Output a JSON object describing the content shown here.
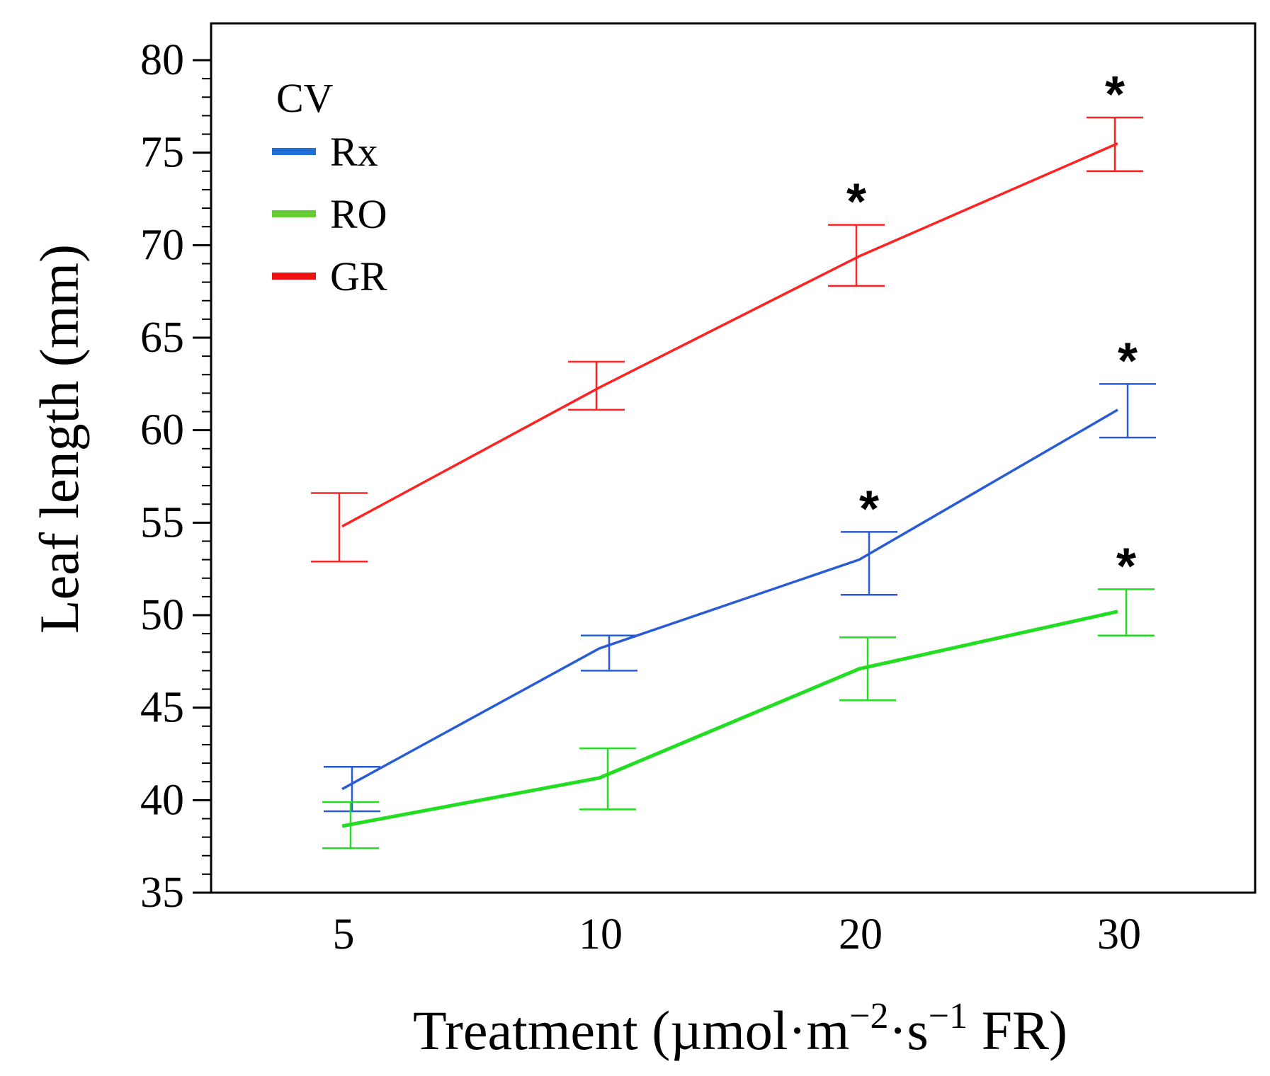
{
  "chart_data": {
    "type": "line",
    "title": "",
    "xlabel": "Treatment (µmol·m",
    "xlabel_sup1": "−2",
    "xlabel_mid": "·s",
    "xlabel_sup2": "−1",
    "xlabel_end": " FR)",
    "ylabel": "Leaf length (mm)",
    "categories": [
      "5",
      "10",
      "20",
      "30"
    ],
    "ylim": [
      35,
      81
    ],
    "yticks": [
      35,
      40,
      45,
      50,
      55,
      60,
      65,
      70,
      75,
      80
    ],
    "ytick_labels": [
      "35",
      "40",
      "45",
      "50",
      "55",
      "60",
      "65",
      "70",
      "75",
      "80"
    ],
    "grid": false,
    "legend": {
      "title": "CV",
      "placement": "top-left"
    },
    "series": [
      {
        "name": "Rx",
        "color": "#2a5bd7",
        "legend_color": "#1f6fd6",
        "values": [
          40.6,
          48.2,
          53.0,
          61.1
        ],
        "error_low": [
          39.4,
          47.0,
          51.1,
          59.6
        ],
        "error_high": [
          41.8,
          48.9,
          54.5,
          62.5
        ],
        "significant": [
          false,
          false,
          true,
          true
        ]
      },
      {
        "name": "RO",
        "color": "#22dd22",
        "legend_color": "#66cc33",
        "values": [
          38.6,
          41.2,
          47.1,
          50.2
        ],
        "error_low": [
          37.4,
          39.5,
          45.4,
          48.9
        ],
        "error_high": [
          39.9,
          42.8,
          48.8,
          51.4
        ],
        "significant": [
          false,
          false,
          false,
          true
        ]
      },
      {
        "name": "GR",
        "color": "#ff2222",
        "legend_color": "#ee1111",
        "values": [
          54.8,
          62.3,
          69.4,
          75.5
        ],
        "error_low": [
          52.9,
          61.1,
          67.8,
          74.0
        ],
        "error_high": [
          56.6,
          63.7,
          71.1,
          76.9
        ],
        "significant": [
          false,
          false,
          true,
          true
        ]
      }
    ],
    "significance_symbol": "*",
    "tick_color": "#c46a1a"
  }
}
